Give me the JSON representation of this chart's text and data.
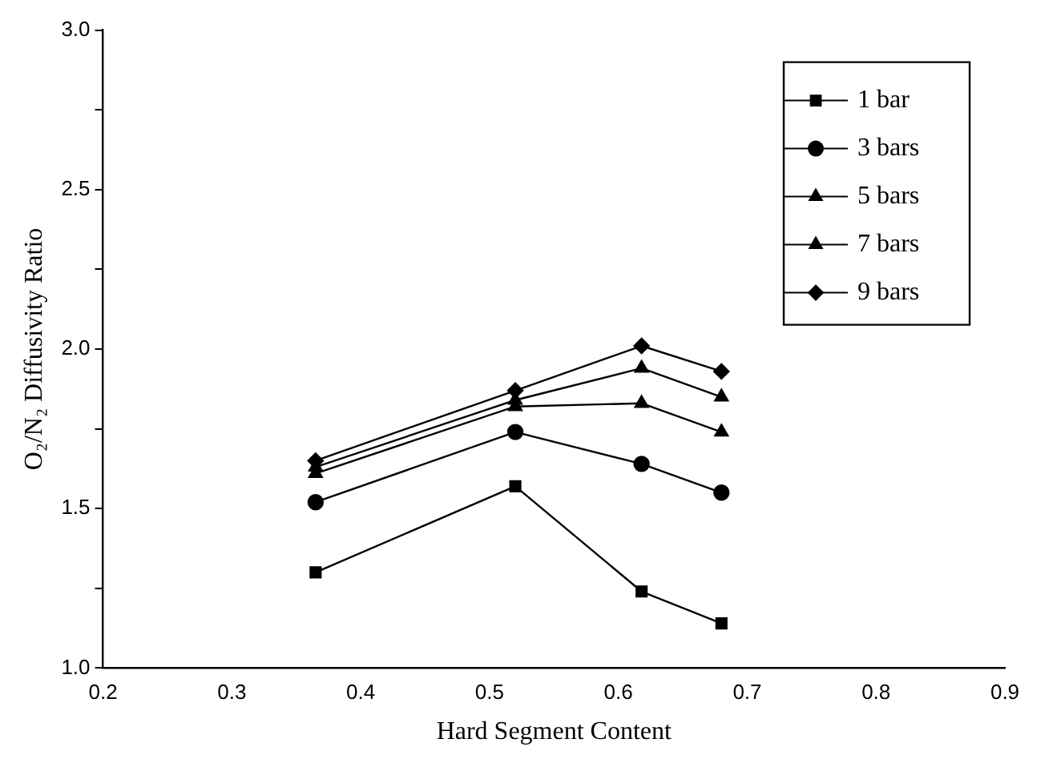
{
  "chart_data": {
    "type": "line",
    "xlabel": "Hard Segment Content",
    "ylabel": "O₂/N₂ Diffusivity Ratio",
    "x": [
      0.365,
      0.52,
      0.618,
      0.68
    ],
    "series": [
      {
        "name": "1 bar",
        "color": "#000000",
        "marker": "square",
        "values": [
          1.3,
          1.57,
          1.24,
          1.14
        ]
      },
      {
        "name": "3 bars",
        "color": "#000000",
        "marker": "circle",
        "values": [
          1.52,
          1.74,
          1.64,
          1.55
        ]
      },
      {
        "name": "5 bars",
        "color": "#000000",
        "marker": "triangle",
        "values": [
          1.61,
          1.82,
          1.83,
          1.74
        ]
      },
      {
        "name": "7 bars",
        "color": "#000000",
        "marker": "triangle",
        "values": [
          1.63,
          1.84,
          1.94,
          1.85
        ]
      },
      {
        "name": "9 bars",
        "color": "#000000",
        "marker": "diamond",
        "values": [
          1.65,
          1.87,
          2.01,
          1.93
        ]
      }
    ],
    "xlim": [
      0.2,
      0.9
    ],
    "xticks": [
      0.2,
      0.3,
      0.4,
      0.5,
      0.6,
      0.7,
      0.8,
      0.9
    ],
    "ylim": [
      1.0,
      3.0
    ],
    "yticks": [
      {
        "value": 1.0,
        "label": "1.0"
      },
      {
        "value": 1.25,
        "label": null
      },
      {
        "value": 1.5,
        "label": "1.5"
      },
      {
        "value": 1.75,
        "label": null
      },
      {
        "value": 2.0,
        "label": "2.0"
      },
      {
        "value": 2.25,
        "label": null
      },
      {
        "value": 2.5,
        "label": "2.5"
      },
      {
        "value": 2.75,
        "label": null
      },
      {
        "value": 3.0,
        "label": "3.0"
      }
    ],
    "grid": false,
    "legend": "top right",
    "line_style": "solid"
  }
}
